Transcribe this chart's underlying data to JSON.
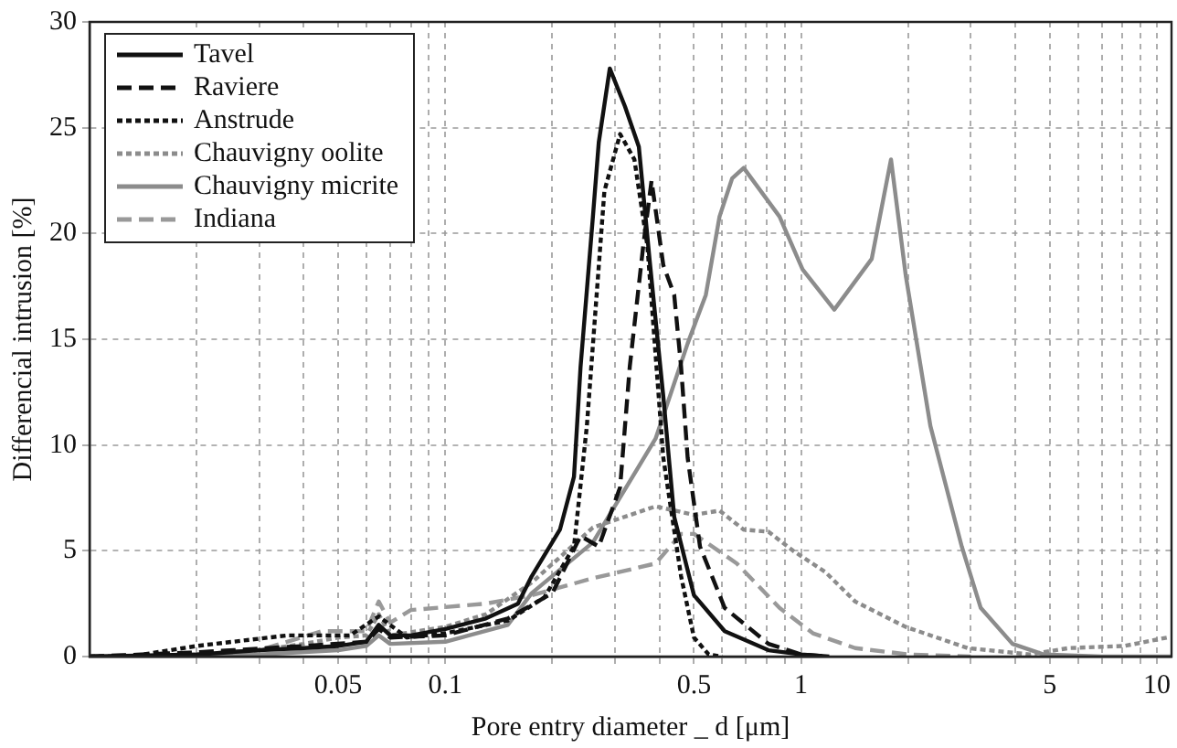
{
  "chart_data": {
    "type": "line",
    "xlabel": "Pore entry diameter _ d [μm]",
    "ylabel": "Differencial intrusion [%]",
    "log": "x",
    "grid": true,
    "legend": "top left",
    "marker": "none",
    "xlim": [
      0.01,
      11
    ],
    "ylim": [
      0,
      30
    ],
    "xticks": [
      {
        "value": 0.02,
        "label": null
      },
      {
        "value": 0.03,
        "label": null
      },
      {
        "value": 0.04,
        "label": null
      },
      0.05,
      {
        "value": 0.06,
        "label": null
      },
      {
        "value": 0.07,
        "label": null
      },
      {
        "value": 0.08,
        "label": null
      },
      {
        "value": 0.09,
        "label": null
      },
      0.1,
      {
        "value": 0.2,
        "label": null
      },
      {
        "value": 0.3,
        "label": null
      },
      {
        "value": 0.4,
        "label": null
      },
      0.5,
      {
        "value": 0.6,
        "label": null
      },
      {
        "value": 0.7,
        "label": null
      },
      {
        "value": 0.8,
        "label": null
      },
      {
        "value": 0.9,
        "label": null
      },
      1,
      {
        "value": 2,
        "label": null
      },
      {
        "value": 3,
        "label": null
      },
      {
        "value": 4,
        "label": null
      },
      5,
      {
        "value": 6,
        "label": null
      },
      {
        "value": 7,
        "label": null
      },
      {
        "value": 8,
        "label": null
      },
      {
        "value": 9,
        "label": null
      },
      10
    ],
    "yticks": [
      0,
      5,
      10,
      15,
      20,
      25,
      30
    ],
    "series": [
      {
        "name": "Tavel",
        "color": "#111111",
        "line_style": "solid",
        "x": [
          0.01,
          0.02,
          0.03,
          0.04,
          0.05,
          0.06,
          0.065,
          0.07,
          0.08,
          0.1,
          0.13,
          0.16,
          0.175,
          0.21,
          0.23,
          0.24,
          0.26,
          0.27,
          0.29,
          0.32,
          0.35,
          0.375,
          0.41,
          0.44,
          0.5,
          0.61,
          0.81,
          1.0,
          1.2
        ],
        "values": [
          0,
          0.1,
          0.3,
          0.4,
          0.5,
          0.7,
          1.5,
          1.0,
          1.0,
          1.3,
          1.8,
          2.5,
          3.8,
          6.0,
          8.5,
          13.7,
          20.8,
          24.3,
          27.8,
          26,
          24.1,
          18.8,
          12.3,
          6.6,
          2.9,
          1.2,
          0.3,
          0.1,
          0
        ]
      },
      {
        "name": "Raviere",
        "color": "#111111",
        "line_style": "dashed",
        "x": [
          0.01,
          0.02,
          0.04,
          0.06,
          0.065,
          0.07,
          0.1,
          0.15,
          0.2,
          0.24,
          0.27,
          0.31,
          0.33,
          0.36,
          0.38,
          0.41,
          0.44,
          0.46,
          0.48,
          0.52,
          0.61,
          0.81,
          1.0,
          1.2
        ],
        "values": [
          0,
          0.2,
          0.5,
          0.7,
          1.3,
          0.9,
          1.0,
          1.8,
          3.0,
          5.7,
          5.2,
          8.0,
          13.7,
          19.4,
          22.5,
          18.5,
          17.1,
          13.7,
          9.4,
          5.2,
          2.3,
          0.6,
          0.1,
          0
        ]
      },
      {
        "name": "Anstrude",
        "color": "#111111",
        "line_style": "dotted",
        "x": [
          0.01,
          0.013,
          0.02,
          0.036,
          0.054,
          0.065,
          0.078,
          0.1,
          0.15,
          0.19,
          0.23,
          0.25,
          0.28,
          0.31,
          0.34,
          0.37,
          0.41,
          0.46,
          0.5,
          0.55,
          0.6
        ],
        "values": [
          0,
          0,
          0.5,
          1.0,
          1.0,
          1.9,
          0.9,
          1.1,
          1.7,
          2.8,
          5.2,
          10.9,
          22,
          24.7,
          23.5,
          19.4,
          9.4,
          3.8,
          0.9,
          0.1,
          0
        ]
      },
      {
        "name": "Chauvigny oolite",
        "color": "#8c8c8c",
        "line_style": "dotted",
        "x": [
          0.01,
          0.02,
          0.03,
          0.04,
          0.05,
          0.06,
          0.065,
          0.07,
          0.1,
          0.13,
          0.175,
          0.26,
          0.39,
          0.5,
          0.59,
          0.69,
          0.81,
          0.95,
          1.17,
          1.42,
          1.97,
          2.94,
          4.4,
          5.65,
          8.1,
          10.7
        ],
        "values": [
          0,
          0.1,
          0.3,
          0.6,
          0.9,
          1.0,
          2.0,
          1.0,
          1.4,
          2.0,
          3.5,
          6.1,
          7.1,
          6.7,
          6.9,
          6.0,
          5.9,
          5.0,
          4.0,
          2.6,
          1.4,
          0.4,
          0.1,
          0.4,
          0.5,
          0.9
        ]
      },
      {
        "name": "Chauvigny micrite",
        "color": "#8c8c8c",
        "line_style": "solid",
        "x": [
          0.01,
          0.03,
          0.05,
          0.06,
          0.065,
          0.07,
          0.1,
          0.15,
          0.175,
          0.26,
          0.39,
          0.48,
          0.54,
          0.59,
          0.64,
          0.69,
          0.87,
          1.01,
          1.24,
          1.58,
          1.79,
          1.97,
          2.31,
          2.83,
          3.2,
          3.93,
          4.8,
          7,
          11
        ],
        "values": [
          0,
          0.1,
          0.3,
          0.5,
          1.0,
          0.6,
          0.7,
          1.5,
          3.0,
          5.4,
          10.3,
          14.8,
          17.1,
          20.8,
          22.6,
          23.1,
          20.8,
          18.3,
          16.4,
          18.8,
          23.5,
          18.0,
          10.9,
          5.2,
          2.3,
          0.6,
          0.1,
          0,
          0
        ]
      },
      {
        "name": "Indiana",
        "color": "#999999",
        "line_style": "dashed",
        "x": [
          0.01,
          0.03,
          0.045,
          0.06,
          0.065,
          0.07,
          0.08,
          0.13,
          0.175,
          0.26,
          0.39,
          0.46,
          0.5,
          0.66,
          0.87,
          1.08,
          1.42,
          2.0,
          3.0
        ],
        "values": [
          0,
          0.3,
          1.2,
          1.2,
          2.6,
          1.6,
          2.2,
          2.5,
          2.9,
          3.7,
          4.4,
          5.8,
          5.8,
          4.4,
          2.3,
          1.1,
          0.4,
          0.1,
          0
        ]
      }
    ]
  }
}
